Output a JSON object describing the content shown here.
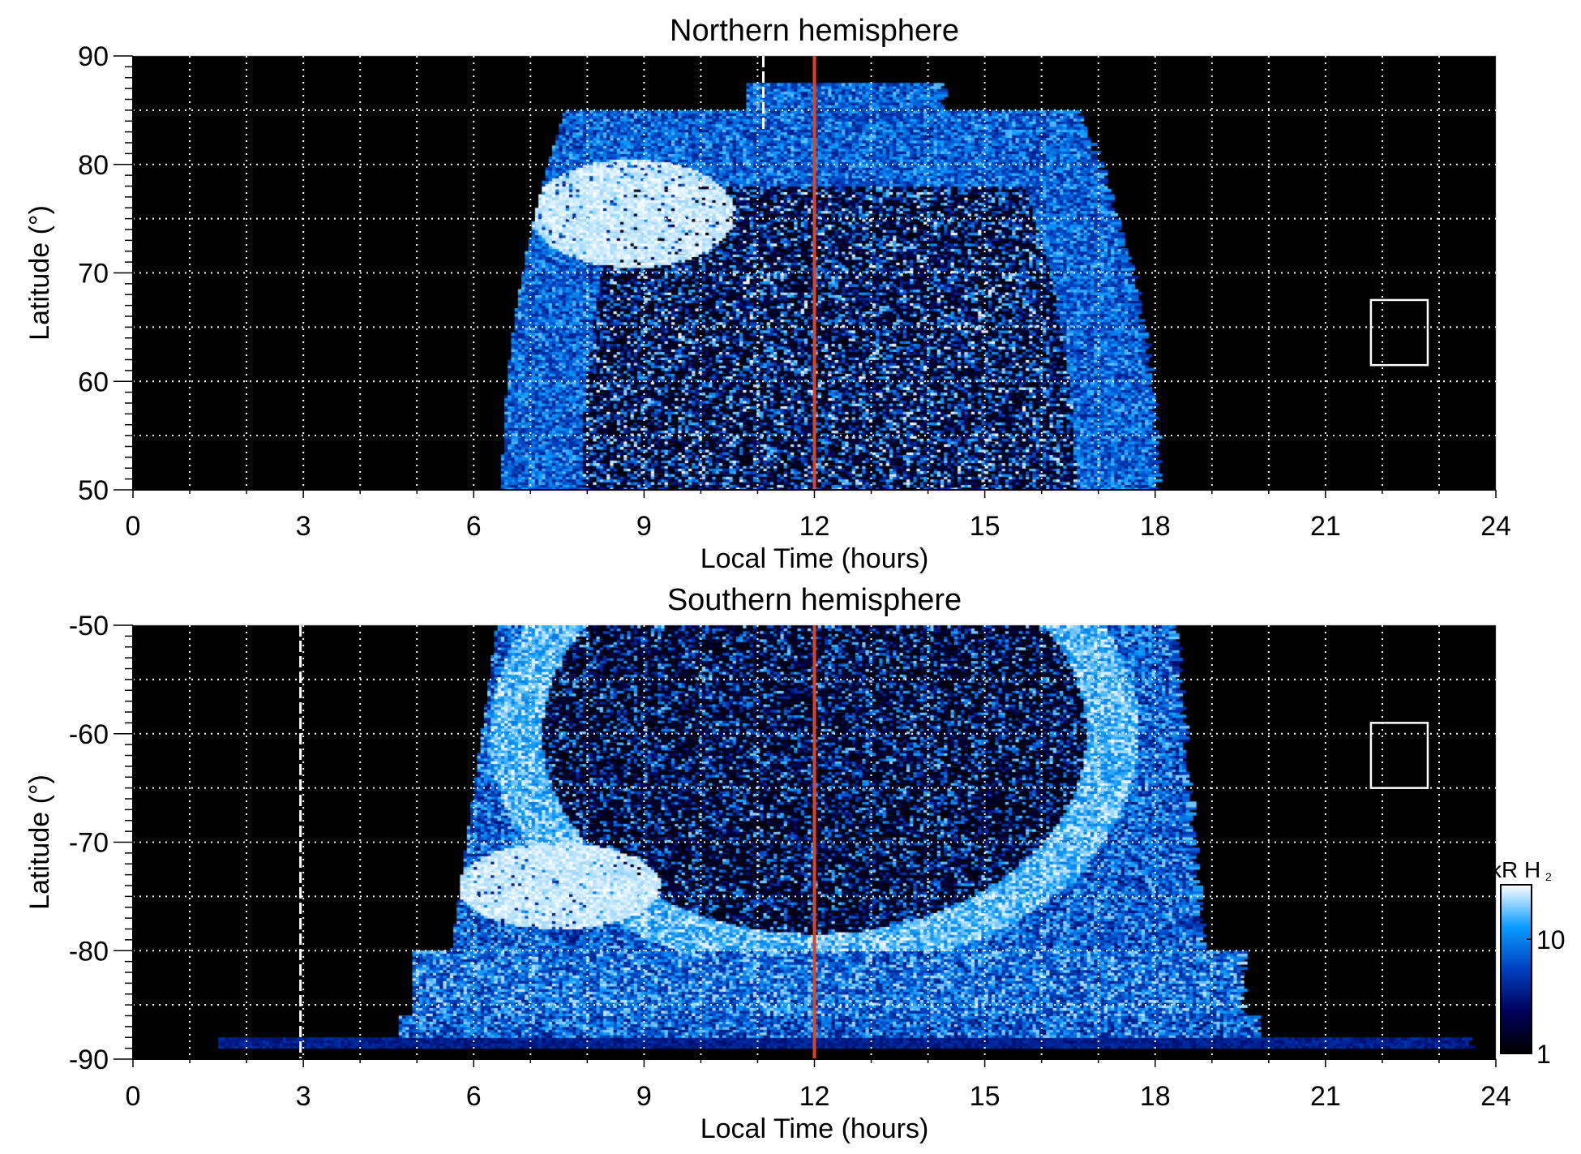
{
  "chart_data": [
    {
      "type": "heatmap",
      "title": "Northern hemisphere",
      "xlabel": "Local Time (hours)",
      "ylabel": "Latitude (°)",
      "xlim": [
        0,
        24
      ],
      "ylim": [
        50,
        90
      ],
      "xticks": [
        "0",
        "3",
        "6",
        "9",
        "12",
        "15",
        "18",
        "21",
        "24"
      ],
      "yticks": [
        "50",
        "60",
        "70",
        "80",
        "90"
      ],
      "grid": true,
      "emission_extent_lt": [
        6.5,
        18
      ],
      "bright_region": {
        "lt": [
          7,
          10.5
        ],
        "lat": [
          70,
          80
        ]
      },
      "noon_line": {
        "lt": 12,
        "color": "#e0441c"
      },
      "dashed_line": {
        "lt": 11.1,
        "lat": [
          83,
          90
        ]
      },
      "box": {
        "lt": [
          21.8,
          22.8
        ],
        "lat": [
          61.5,
          67.5
        ]
      }
    },
    {
      "type": "heatmap",
      "title": "Southern hemisphere",
      "xlabel": "Local Time (hours)",
      "ylabel": "Latitude (°)",
      "xlim": [
        0,
        24
      ],
      "ylim": [
        -90,
        -50
      ],
      "xticks": [
        "0",
        "3",
        "6",
        "9",
        "12",
        "15",
        "18",
        "21",
        "24"
      ],
      "yticks": [
        "-90",
        "-80",
        "-70",
        "-60",
        "-50"
      ],
      "grid": true,
      "emission_extent_lt": [
        4.7,
        19.8
      ],
      "bright_region": {
        "lt": [
          6,
          9.5
        ],
        "lat": [
          -78,
          -70
        ]
      },
      "noon_line": {
        "lt": 12,
        "color": "#e0441c"
      },
      "dashed_line": {
        "lt": 2.95,
        "lat": [
          -90,
          -50
        ]
      },
      "box": {
        "lt": [
          21.8,
          22.8
        ],
        "lat": [
          -65,
          -59
        ]
      }
    }
  ],
  "colorbar": {
    "label": "kR H",
    "label_subscript": "2",
    "scale": "log",
    "range": [
      1,
      30
    ],
    "ticks": [
      "1",
      "10"
    ],
    "colors": [
      "#000000",
      "#00005a",
      "#0040c0",
      "#0a9cff",
      "#ffffff"
    ]
  }
}
